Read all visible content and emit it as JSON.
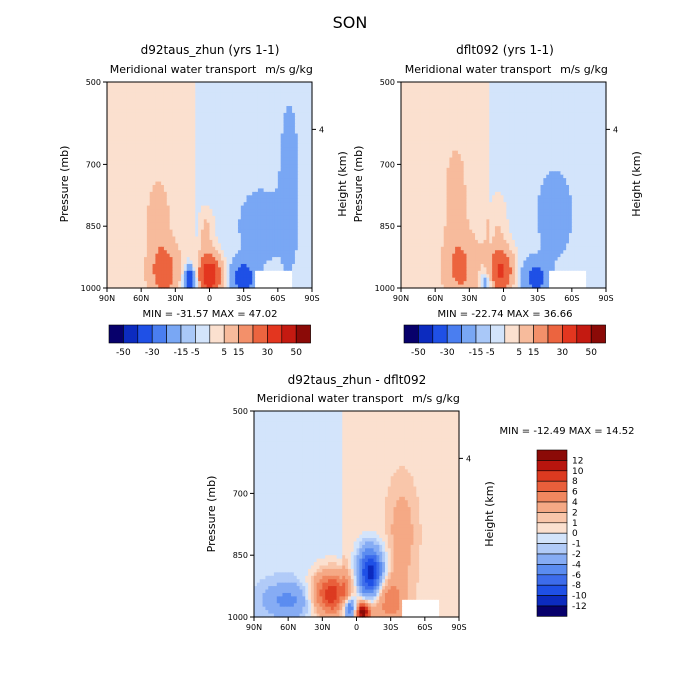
{
  "figure": {
    "title": "SON"
  },
  "panels": [
    {
      "id": "left",
      "title": "d92taus_zhun (yrs 1-1)",
      "subtitle": "Meridional water transport",
      "units": "m/s g/kg",
      "ylabel": "Pressure (mb)",
      "ylabel_right": "Height (km)",
      "minmax": "MIN = -31.57   MAX =  47.02"
    },
    {
      "id": "right",
      "title": "dflt092 (yrs 1-1)",
      "subtitle": "Meridional water transport",
      "units": "m/s g/kg",
      "ylabel": "Pressure (mb)",
      "ylabel_right": "Height (km)",
      "minmax": "MIN = -22.74   MAX =  36.66"
    },
    {
      "id": "diff",
      "title": "d92taus_zhun - dflt092",
      "subtitle": "Meridional water transport",
      "units": "m/s g/kg",
      "ylabel": "Pressure (mb)",
      "ylabel_right": "Height (km)",
      "minmax": "MIN = -12.49   MAX =  14.52"
    }
  ],
  "axes": {
    "x_ticks": [
      "90N",
      "60N",
      "30N",
      "0",
      "30S",
      "60S",
      "90S"
    ],
    "y_ticks": [
      "500",
      "700",
      "850",
      "1000"
    ],
    "y_ticks_values": [
      500,
      700,
      850,
      1000
    ],
    "height_tick": "4",
    "height_tick_pressure": 615
  },
  "colorbars": {
    "horizontal_labels": [
      "-50",
      "-30",
      "-15",
      "-5",
      "5",
      "15",
      "30",
      "50"
    ],
    "vertical_labels": [
      "12",
      "10",
      "8",
      "6",
      "4",
      "2",
      "1",
      "0",
      "-1",
      "-2",
      "-4",
      "-6",
      "-8",
      "-10",
      "-12"
    ]
  },
  "colors": {
    "diverging": [
      "#07006b",
      "#0c2bbf",
      "#1f50e6",
      "#4a7ef0",
      "#79a7f4",
      "#a9c8f8",
      "#d3e4fb",
      "#fbe0cf",
      "#f7bb9c",
      "#f3906a",
      "#ec643f",
      "#e3361f",
      "#c41a11",
      "#8b0a07"
    ]
  },
  "chart_data": [
    {
      "type": "heatmap",
      "title": "d92taus_zhun (yrs 1-1)",
      "subtitle": "Meridional water transport",
      "units": "m/s g/kg",
      "xlabel": "",
      "ylabel": "Pressure (mb)",
      "x_range": [
        "90N",
        "90S"
      ],
      "y_range": [
        500,
        1000
      ],
      "min": -31.57,
      "max": 47.02,
      "levels": [
        -50,
        -30,
        -15,
        -5,
        5,
        15,
        30,
        50
      ],
      "features": [
        {
          "lat": 40,
          "p": 970,
          "value": 20
        },
        {
          "lat": 18,
          "p": 990,
          "value": -30
        },
        {
          "lat": 0,
          "p": 970,
          "value": 45
        },
        {
          "lat": -30,
          "p": 980,
          "value": -20
        },
        {
          "lat": -50,
          "p": 860,
          "value": -8
        }
      ]
    },
    {
      "type": "heatmap",
      "title": "dflt092 (yrs 1-1)",
      "subtitle": "Meridional water transport",
      "units": "m/s g/kg",
      "xlabel": "",
      "ylabel": "Pressure (mb)",
      "x_range": [
        "90N",
        "90S"
      ],
      "y_range": [
        500,
        1000
      ],
      "min": -22.74,
      "max": 36.66,
      "levels": [
        -50,
        -30,
        -15,
        -5,
        5,
        15,
        30,
        50
      ],
      "features": [
        {
          "lat": 40,
          "p": 960,
          "value": 15
        },
        {
          "lat": 15,
          "p": 985,
          "value": -18
        },
        {
          "lat": 5,
          "p": 960,
          "value": 35
        },
        {
          "lat": -28,
          "p": 970,
          "value": -18
        },
        {
          "lat": -45,
          "p": 820,
          "value": -7
        }
      ]
    },
    {
      "type": "heatmap",
      "title": "d92taus_zhun - dflt092",
      "subtitle": "Meridional water transport",
      "units": "m/s g/kg",
      "xlabel": "",
      "ylabel": "Pressure (mb)",
      "x_range": [
        "90N",
        "90S"
      ],
      "y_range": [
        500,
        1000
      ],
      "min": -12.49,
      "max": 14.52,
      "levels": [
        -12,
        -10,
        -8,
        -6,
        -4,
        -2,
        -1,
        0,
        1,
        2,
        4,
        6,
        8,
        10,
        12
      ],
      "features": [
        {
          "lat": 22,
          "p": 940,
          "value": 10
        },
        {
          "lat": -12,
          "p": 900,
          "value": -12
        },
        {
          "lat": 5,
          "p": 980,
          "value": -10
        },
        {
          "lat": -5,
          "p": 985,
          "value": 14
        },
        {
          "lat": -25,
          "p": 960,
          "value": 5
        }
      ]
    }
  ]
}
